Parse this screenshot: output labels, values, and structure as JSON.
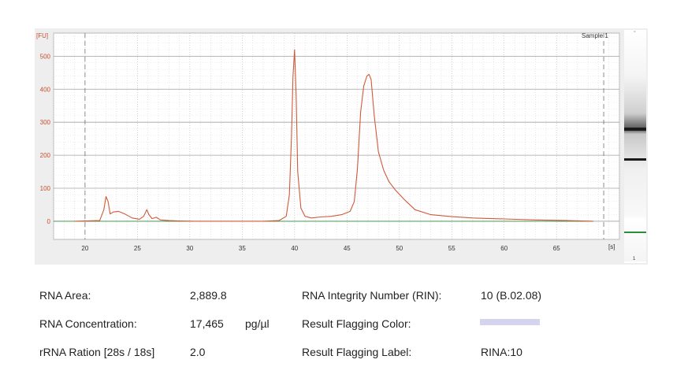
{
  "chart_data": {
    "type": "line",
    "y_unit": "[FU]",
    "x_unit": "[s]",
    "sample_label": "Sample 1",
    "xlim": [
      17,
      71
    ],
    "ylim": [
      -55,
      570
    ],
    "x_ticks": [
      20,
      25,
      30,
      35,
      40,
      45,
      50,
      55,
      60,
      65
    ],
    "y_ticks": [
      0,
      100,
      200,
      300,
      400,
      500
    ],
    "grid": true,
    "marker_lines_x": [
      20,
      69.5
    ],
    "series": [
      {
        "color": "#d0593a",
        "x": [
          19.0,
          21.4,
          21.8,
          22.0,
          22.2,
          22.4,
          22.7,
          23.2,
          23.8,
          24.5,
          25.2,
          25.6,
          25.9,
          26.1,
          26.4,
          26.8,
          27.2,
          28.0,
          29.0,
          30.5,
          32.5,
          35.0,
          37.0,
          38.5,
          39.2,
          39.5,
          39.7,
          39.85,
          40.0,
          40.15,
          40.3,
          40.6,
          41.0,
          41.6,
          42.5,
          43.5,
          44.5,
          45.3,
          45.7,
          46.0,
          46.3,
          46.6,
          46.9,
          47.1,
          47.3,
          47.6,
          48.0,
          48.5,
          49.0,
          49.6,
          50.5,
          51.5,
          53.0,
          55.0,
          57.0,
          60.0,
          63.0,
          66.0,
          68.5
        ],
        "y": [
          0,
          2,
          35,
          75,
          60,
          22,
          28,
          30,
          22,
          10,
          6,
          15,
          35,
          20,
          8,
          12,
          4,
          2,
          1,
          0,
          0,
          0,
          0,
          2,
          15,
          80,
          250,
          440,
          520,
          380,
          150,
          40,
          15,
          10,
          13,
          15,
          20,
          30,
          60,
          160,
          330,
          410,
          440,
          445,
          430,
          320,
          210,
          155,
          120,
          95,
          65,
          35,
          20,
          14,
          10,
          7,
          4,
          2,
          0
        ]
      }
    ]
  },
  "gel": {
    "sample_number": "1",
    "ladder_dot": "°"
  },
  "results": {
    "rna_area_label": "RNA Area:",
    "rna_area_value": "2,889.8",
    "rna_conc_label": "RNA Concentration:",
    "rna_conc_value": "17,465",
    "rna_conc_unit": "pg/µl",
    "rrna_ratio_label": "rRNA Ration [28s / 18s]",
    "rrna_ratio_value": "2.0",
    "rin_label": "RNA Integrity Number (RIN):",
    "rin_value": "10  (B.02.08)",
    "flag_color_label": "Result Flagging Color:",
    "flag_color": "#d4d4ee",
    "flag_label_label": "Result Flagging Label:",
    "flag_label_value": "RINA:10"
  }
}
